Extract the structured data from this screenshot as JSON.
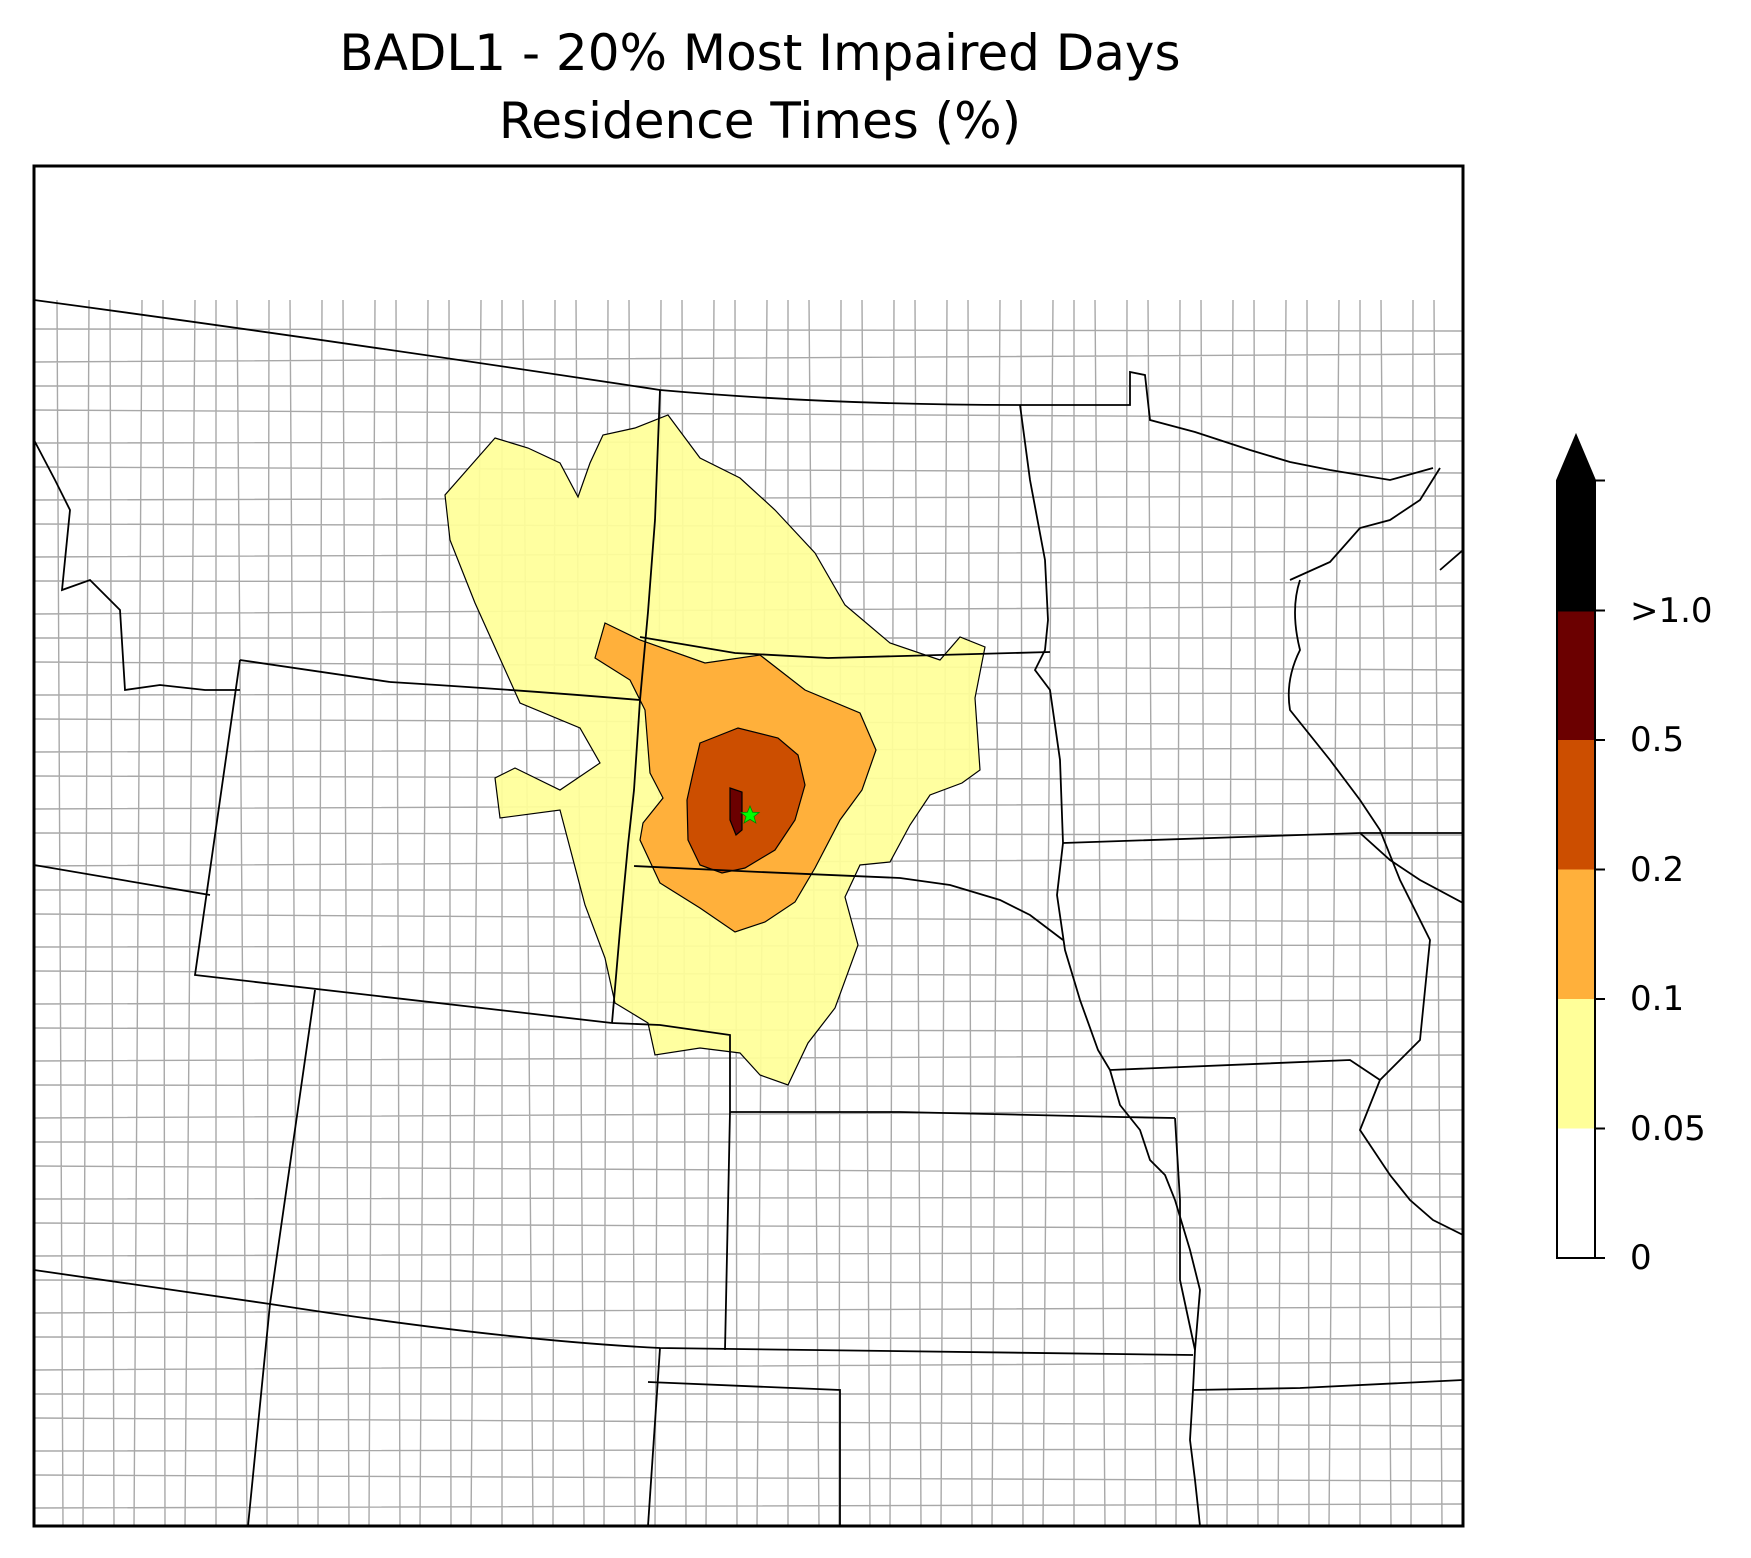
{
  "title": {
    "line1": "BADL1 - 20% Most Impaired Days",
    "line2": "Residence Times (%)"
  },
  "site_marker": {
    "icon": "star-icon",
    "color": "#00ff00"
  },
  "colorbar": {
    "extend": "max",
    "bins": [
      {
        "min": "0",
        "max": "0.05",
        "color": "#ffffff"
      },
      {
        "min": "0.05",
        "max": "0.1",
        "color": "#ffff99"
      },
      {
        "min": "0.1",
        "max": "0.2",
        "color": "#ffb03b"
      },
      {
        "min": "0.2",
        "max": "0.5",
        "color": "#cc4e00"
      },
      {
        "min": "0.5",
        "max": ">1.0",
        "color": "#6b0000"
      },
      {
        "min": ">1.0",
        "max": "",
        "color": "#000000"
      }
    ],
    "tick_labels": [
      "0",
      "0.05",
      "0.1",
      "0.2",
      "0.5",
      ">1.0"
    ]
  },
  "colors": {
    "state_border": "#000000",
    "county_border": "#a8a8a8",
    "contour_edge": "#000000"
  }
}
